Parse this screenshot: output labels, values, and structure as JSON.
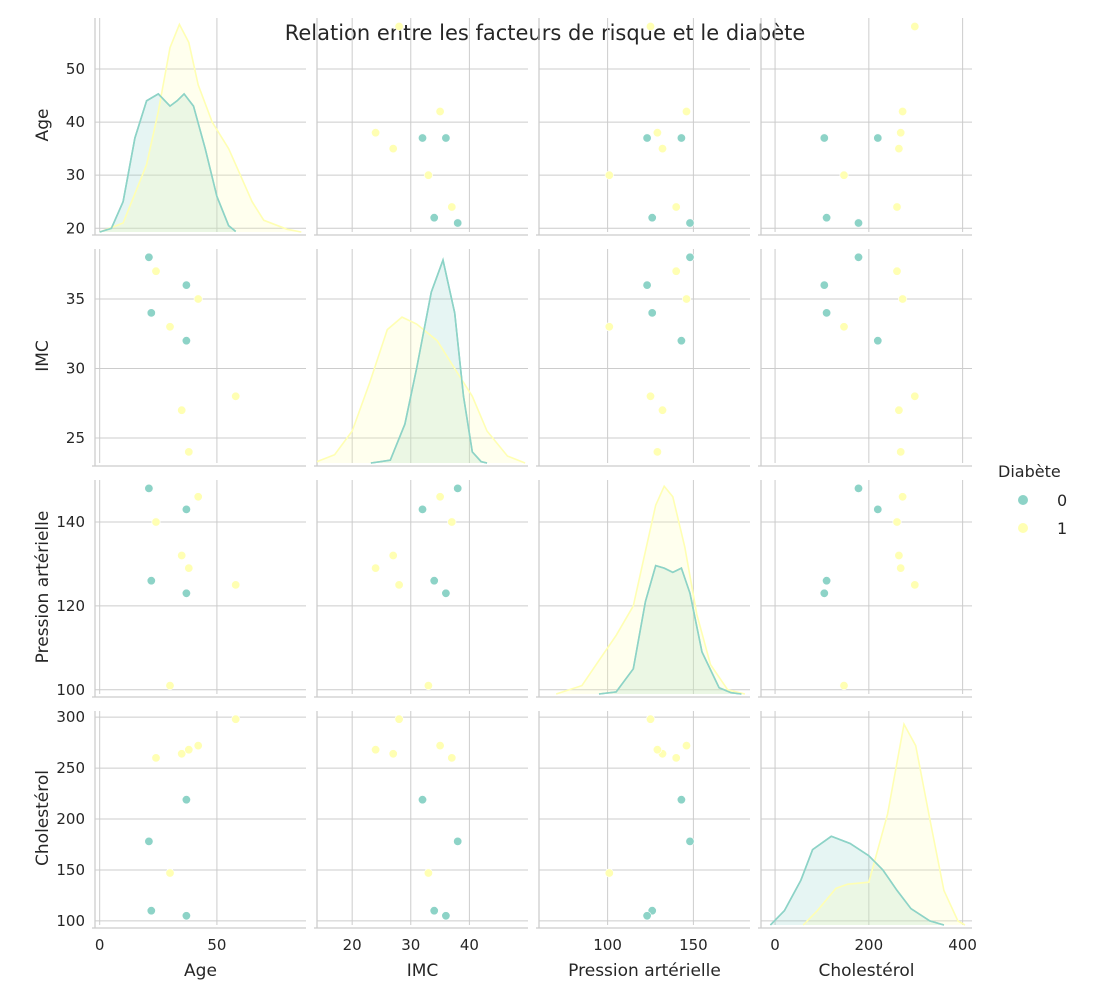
{
  "chart_data": {
    "type": "scatter",
    "title": "Relation entre les facteurs de risque et le diabète",
    "variables": [
      "Age",
      "IMC",
      "Pression artérielle",
      "Cholestérol"
    ],
    "axes": {
      "Age": {
        "range": [
          -2,
          88
        ],
        "ticks": [
          0,
          20,
          30,
          40,
          50
        ],
        "ticks_x": [
          0,
          50
        ],
        "ticks_y": [
          20,
          30,
          40,
          50
        ]
      },
      "IMC": {
        "range": [
          23.2,
          38.6
        ],
        "ticks_x": [
          20,
          30,
          40
        ],
        "ticks_y": [
          25,
          30,
          35
        ]
      },
      "Pression artérielle": {
        "range": [
          99,
          150
        ],
        "ticks_x": [
          100,
          150
        ],
        "ticks_y": [
          100,
          120,
          140
        ]
      },
      "Cholestérol": {
        "range": [
          96,
          306
        ],
        "ticks_x": [
          0,
          200,
          400
        ],
        "ticks_y": [
          100,
          150,
          200,
          250,
          300
        ]
      }
    },
    "scatter_x_ranges": {
      "Age": [
        -2,
        88
      ],
      "IMC": [
        14,
        50
      ],
      "Pression artérielle": [
        60,
        183
      ],
      "Cholestérol": [
        -30,
        420
      ]
    },
    "y_ranges": {
      "Age": [
        19.3,
        59.6
      ],
      "IMC": [
        23.2,
        38.6
      ],
      "Pression artérielle": [
        99,
        150
      ],
      "Cholestérol": [
        96,
        306
      ]
    },
    "hue": "Diabète",
    "legend": {
      "title": "Diabète",
      "entries": [
        "0",
        "1"
      ],
      "placement": "right"
    },
    "colors": {
      "0": "#8dd3c7",
      "1": "#ffffb3"
    },
    "grid": true,
    "points": [
      {
        "Age": 21,
        "IMC": 38,
        "Pression artérielle": 148,
        "Cholestérol": 178,
        "Diabète": 0
      },
      {
        "Age": 22,
        "IMC": 34,
        "Pression artérielle": 126,
        "Cholestérol": 110,
        "Diabète": 0
      },
      {
        "Age": 37,
        "IMC": 36,
        "Pression artérielle": 123,
        "Cholestérol": 105,
        "Diabète": 0
      },
      {
        "Age": 37,
        "IMC": 32,
        "Pression artérielle": 143,
        "Cholestérol": 219,
        "Diabète": 0
      },
      {
        "Age": 24,
        "IMC": 37,
        "Pression artérielle": 140,
        "Cholestérol": 260,
        "Diabète": 1
      },
      {
        "Age": 30,
        "IMC": 33,
        "Pression artérielle": 101,
        "Cholestérol": 147,
        "Diabète": 1
      },
      {
        "Age": 35,
        "IMC": 27,
        "Pression artérielle": 132,
        "Cholestérol": 264,
        "Diabète": 1
      },
      {
        "Age": 38,
        "IMC": 24,
        "Pression artérielle": 129,
        "Cholestérol": 268,
        "Diabète": 1
      },
      {
        "Age": 42,
        "IMC": 35,
        "Pression artérielle": 146,
        "Cholestérol": 272,
        "Diabète": 1
      },
      {
        "Age": 58,
        "IMC": 28,
        "Pression artérielle": 125,
        "Cholestérol": 298,
        "Diabète": 1
      }
    ],
    "kde": {
      "Age": {
        "0": [
          [
            0,
            19.3
          ],
          [
            5,
            20
          ],
          [
            10,
            25
          ],
          [
            15,
            37
          ],
          [
            20,
            44
          ],
          [
            25,
            45.3
          ],
          [
            30,
            43
          ],
          [
            33,
            44
          ],
          [
            36,
            45.3
          ],
          [
            40,
            43
          ],
          [
            45,
            35
          ],
          [
            50,
            26
          ],
          [
            55,
            20.5
          ],
          [
            58,
            19.4
          ]
        ],
        "1": [
          [
            0,
            19.3
          ],
          [
            10,
            21
          ],
          [
            20,
            32
          ],
          [
            25,
            42
          ],
          [
            30,
            54
          ],
          [
            34,
            58.4
          ],
          [
            38,
            55
          ],
          [
            42,
            47
          ],
          [
            48,
            40
          ],
          [
            55,
            35
          ],
          [
            60,
            30
          ],
          [
            65,
            25
          ],
          [
            70,
            21.5
          ],
          [
            80,
            19.8
          ],
          [
            86,
            19.3
          ]
        ]
      },
      "IMC": {
        "0": [
          [
            23.2,
            23.2
          ],
          [
            26.5,
            23.4
          ],
          [
            29,
            26
          ],
          [
            31,
            30
          ],
          [
            33.5,
            35.5
          ],
          [
            35.5,
            37.8
          ],
          [
            37.5,
            34
          ],
          [
            39,
            28
          ],
          [
            40.5,
            24
          ],
          [
            42,
            23.3
          ],
          [
            43,
            23.2
          ]
        ],
        "1": [
          [
            14,
            23.3
          ],
          [
            17,
            23.8
          ],
          [
            20,
            25.5
          ],
          [
            23,
            29
          ],
          [
            26,
            32.8
          ],
          [
            28.5,
            33.7
          ],
          [
            31,
            33.2
          ],
          [
            34.5,
            32
          ],
          [
            37.5,
            30
          ],
          [
            40.5,
            28
          ],
          [
            43,
            25.5
          ],
          [
            46.5,
            23.7
          ],
          [
            49.5,
            23.2
          ]
        ]
      },
      "Pression artérielle": {
        "0": [
          [
            95,
            99
          ],
          [
            105,
            99.5
          ],
          [
            115,
            105
          ],
          [
            122,
            121
          ],
          [
            128,
            129.6
          ],
          [
            133,
            129
          ],
          [
            138,
            128
          ],
          [
            143,
            129
          ],
          [
            148,
            123
          ],
          [
            155,
            109
          ],
          [
            165,
            100.5
          ],
          [
            172,
            99.3
          ],
          [
            178,
            99
          ]
        ],
        "1": [
          [
            70,
            99
          ],
          [
            85,
            101
          ],
          [
            95,
            107
          ],
          [
            105,
            113
          ],
          [
            115,
            120
          ],
          [
            122,
            133
          ],
          [
            128,
            144
          ],
          [
            133,
            148.5
          ],
          [
            138,
            146
          ],
          [
            145,
            134
          ],
          [
            152,
            118
          ],
          [
            160,
            106
          ],
          [
            170,
            100
          ],
          [
            180,
            99
          ]
        ]
      },
      "Cholestérol": {
        "0": [
          [
            -10,
            96
          ],
          [
            20,
            110
          ],
          [
            55,
            140
          ],
          [
            80,
            170
          ],
          [
            120,
            183
          ],
          [
            160,
            176
          ],
          [
            200,
            164
          ],
          [
            230,
            150
          ],
          [
            260,
            130
          ],
          [
            290,
            112
          ],
          [
            330,
            100
          ],
          [
            360,
            96
          ]
        ],
        "1": [
          [
            60,
            96
          ],
          [
            90,
            110
          ],
          [
            130,
            132
          ],
          [
            155,
            136
          ],
          [
            200,
            138
          ],
          [
            240,
            205
          ],
          [
            275,
            293
          ],
          [
            300,
            272
          ],
          [
            330,
            200
          ],
          [
            360,
            130
          ],
          [
            390,
            100
          ],
          [
            405,
            96
          ]
        ]
      }
    }
  }
}
